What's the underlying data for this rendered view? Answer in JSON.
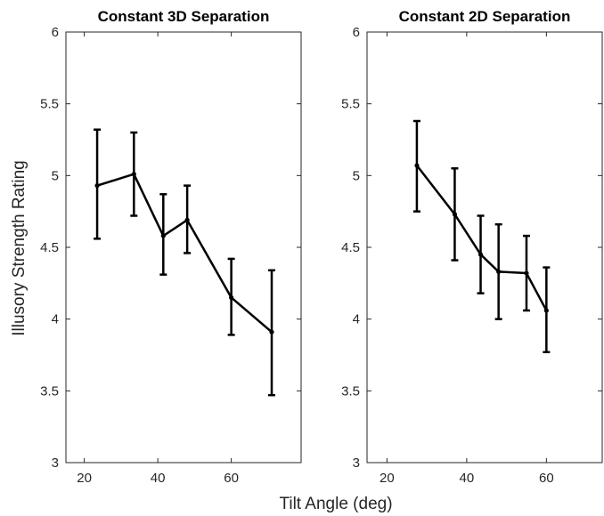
{
  "figure": {
    "ylabel": "Illusory Strength Rating",
    "xlabel": "Tilt Angle (deg)"
  },
  "chart_data": [
    {
      "type": "line",
      "title": "Constant 3D Separation",
      "xlim": [
        15,
        79
      ],
      "ylim": [
        3,
        6
      ],
      "xticks": [
        20,
        40,
        60
      ],
      "yticks": [
        3,
        3.5,
        4,
        4.5,
        5,
        5.5,
        6
      ],
      "grid": false,
      "series": [
        {
          "color": "#000000",
          "x": [
            23.5,
            33.5,
            41.5,
            48,
            60,
            71
          ],
          "y": [
            4.93,
            5.01,
            4.58,
            4.69,
            4.15,
            3.91
          ],
          "err_low": [
            4.56,
            4.72,
            4.31,
            4.46,
            3.89,
            3.47
          ],
          "err_high": [
            5.32,
            5.3,
            4.87,
            4.93,
            4.42,
            4.34
          ]
        }
      ]
    },
    {
      "type": "line",
      "title": "Constant 2D Separation",
      "xlim": [
        15,
        74
      ],
      "ylim": [
        3,
        6
      ],
      "xticks": [
        20,
        40,
        60
      ],
      "yticks": [
        3,
        3.5,
        4,
        4.5,
        5,
        5.5,
        6
      ],
      "grid": false,
      "series": [
        {
          "color": "#000000",
          "x": [
            27.5,
            37,
            43.5,
            48,
            55,
            60
          ],
          "y": [
            5.07,
            4.73,
            4.45,
            4.33,
            4.32,
            4.06
          ],
          "err_low": [
            4.75,
            4.41,
            4.18,
            4.0,
            4.06,
            3.77
          ],
          "err_high": [
            5.38,
            5.05,
            4.72,
            4.66,
            4.58,
            4.36
          ]
        }
      ]
    }
  ]
}
